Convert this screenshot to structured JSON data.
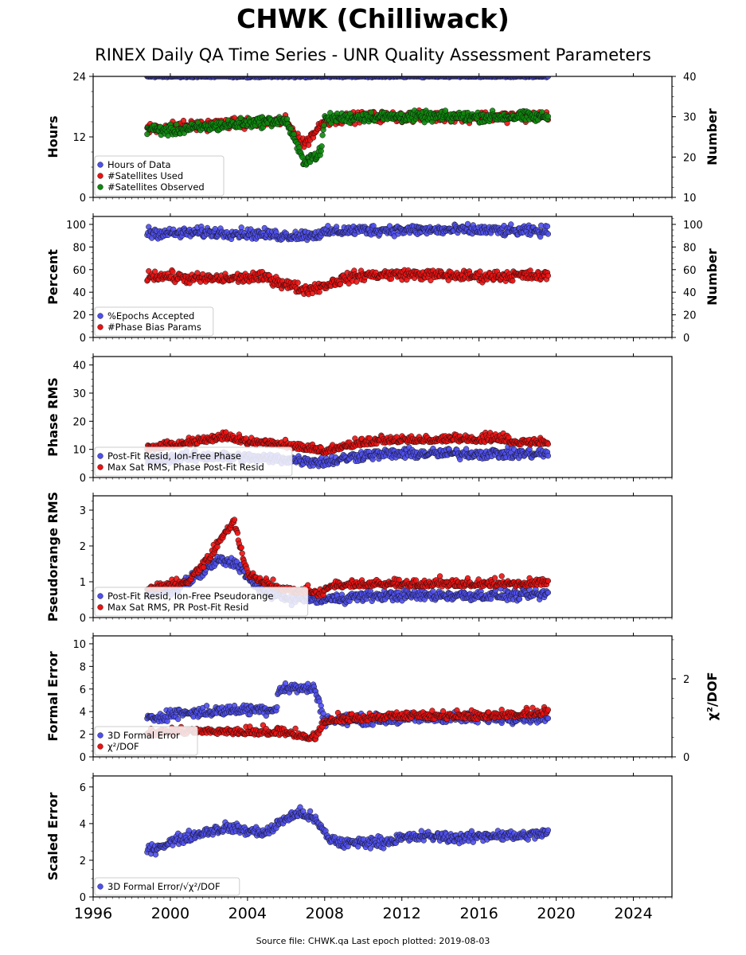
{
  "title": "CHWK (Chilliwack)",
  "subtitle": "RINEX Daily QA Time Series - UNR Quality Assessment Parameters",
  "footer": "Source file: CHWK.qa Last epoch plotted: 2019-08-03",
  "colors": {
    "blue": "#4f4ff0",
    "red": "#ee1111",
    "green": "#0c8a0c",
    "edge": "#111111"
  },
  "chart_data": [
    {
      "type": "scatter",
      "ylabel": "Hours",
      "ylabel_right": "Number",
      "xlim": [
        1996,
        2026
      ],
      "xticks": [
        1996,
        2000,
        2004,
        2008,
        2012,
        2016,
        2020,
        2024
      ],
      "ylim": [
        0,
        24
      ],
      "yticks": [
        0,
        12,
        24
      ],
      "ylim_right": [
        10,
        40
      ],
      "yticks_right": [
        10,
        20,
        30,
        40
      ],
      "legend": [
        "Hours of Data",
        "#Satellites Used",
        "#Satellites Observed"
      ],
      "legend_position": "lower-left",
      "series": [
        {
          "name": "Hours of Data",
          "color": "blue",
          "axis": "left",
          "x": [
            1998.8,
            1999.5,
            2000.3,
            2001.0,
            2002.0,
            2003.0,
            2004.0,
            2005.0,
            2006.0,
            2007.0,
            2008.0,
            2010.0,
            2012.0,
            2014.0,
            2016.0,
            2018.0,
            2019.58
          ],
          "y": [
            24,
            24,
            24,
            24,
            24,
            24,
            24,
            24,
            24,
            24,
            24,
            24,
            24,
            24,
            24,
            24,
            24
          ]
        },
        {
          "name": "#Satellites Used",
          "color": "red",
          "axis": "right",
          "x": [
            1998.8,
            2000.0,
            2002.0,
            2004.0,
            2006.0,
            2006.9,
            2008.0,
            2010.0,
            2012.0,
            2014.0,
            2016.0,
            2018.0,
            2019.58
          ],
          "y": [
            27,
            27.5,
            28,
            28.5,
            28.8,
            23,
            29,
            30,
            30,
            30,
            30,
            30,
            30
          ]
        },
        {
          "name": "#Satellites Observed",
          "color": "green",
          "axis": "right",
          "x": [
            1998.8,
            2000.0,
            2001.0,
            2002.0,
            2003.0,
            2004.0,
            2005.0,
            2006.0,
            2006.9,
            2007.8,
            2008.0,
            2010.0,
            2012.0,
            2014.0,
            2016.0,
            2018.0,
            2019.58
          ],
          "y": [
            27,
            26.5,
            27,
            27.5,
            28,
            28.5,
            28.8,
            29,
            19,
            21,
            29.5,
            30,
            30,
            30,
            30,
            30,
            30
          ]
        }
      ]
    },
    {
      "type": "scatter",
      "ylabel": "Percent",
      "ylabel_right": "Number",
      "xlim": [
        1996,
        2026
      ],
      "xticks": [
        1996,
        2000,
        2004,
        2008,
        2012,
        2016,
        2020,
        2024
      ],
      "ylim": [
        0,
        107
      ],
      "yticks": [
        0,
        20,
        40,
        60,
        80,
        100
      ],
      "ylim_right": [
        0,
        107
      ],
      "yticks_right": [
        0,
        20,
        40,
        60,
        80,
        100
      ],
      "legend": [
        "%Epochs Accepted",
        "#Phase Bias Params"
      ],
      "legend_position": "lower-left",
      "series": [
        {
          "name": "%Epochs Accepted",
          "color": "blue",
          "axis": "left",
          "x": [
            1998.8,
            2000.0,
            2002.0,
            2004.0,
            2006.0,
            2007.5,
            2008.5,
            2010.0,
            2012.0,
            2014.0,
            2016.0,
            2018.0,
            2019.58
          ],
          "y": [
            93,
            92,
            93,
            92,
            90,
            91,
            94,
            95,
            95,
            95,
            95,
            94,
            94
          ]
        },
        {
          "name": "#Phase Bias Params",
          "color": "red",
          "axis": "right",
          "x": [
            1998.8,
            2000.0,
            2001.0,
            2002.0,
            2003.0,
            2004.0,
            2005.0,
            2006.0,
            2007.0,
            2008.0,
            2009.0,
            2010.0,
            2012.0,
            2014.0,
            2016.0,
            2018.0,
            2019.58
          ],
          "y": [
            55,
            54,
            52,
            52,
            52,
            53,
            53,
            47,
            42,
            46,
            52,
            55,
            56,
            55,
            54,
            55,
            54
          ]
        }
      ]
    },
    {
      "type": "scatter",
      "ylabel": "Phase RMS",
      "xlim": [
        1996,
        2026
      ],
      "xticks": [
        1996,
        2000,
        2004,
        2008,
        2012,
        2016,
        2020,
        2024
      ],
      "ylim": [
        0,
        43
      ],
      "yticks": [
        0,
        10,
        20,
        30,
        40
      ],
      "legend": [
        "Post-Fit Resid, Ion-Free Phase",
        "Max Sat RMS, Phase Post-Fit Resid"
      ],
      "legend_position": "lower-left",
      "series": [
        {
          "name": "Post-Fit Resid, Ion-Free Phase",
          "color": "blue",
          "x": [
            1998.8,
            2000.0,
            2002.0,
            2004.0,
            2006.0,
            2008.0,
            2010.0,
            2012.0,
            2014.0,
            2016.0,
            2018.0,
            2019.58
          ],
          "y": [
            6.5,
            7,
            7.5,
            7,
            6.5,
            5.5,
            8,
            8.5,
            8.5,
            8.5,
            8.5,
            8.5
          ]
        },
        {
          "name": "Max Sat RMS, Phase Post-Fit Resid",
          "color": "red",
          "x": [
            1998.8,
            2000.0,
            2001.0,
            2002.0,
            2003.0,
            2004.0,
            2005.0,
            2006.0,
            2007.0,
            2008.0,
            2010.0,
            2012.0,
            2014.0,
            2016.0,
            2017.0,
            2018.0,
            2019.58
          ],
          "y": [
            10,
            11,
            12,
            13,
            14,
            12,
            12,
            11,
            10,
            9,
            12,
            13,
            13,
            13,
            13,
            12,
            12
          ]
        }
      ]
    },
    {
      "type": "scatter",
      "ylabel": "Pseudorange RMS",
      "xlim": [
        1996,
        2026
      ],
      "xticks": [
        1996,
        2000,
        2004,
        2008,
        2012,
        2016,
        2020,
        2024
      ],
      "ylim": [
        0,
        3.4
      ],
      "yticks": [
        0,
        1,
        2,
        3
      ],
      "legend": [
        "Post-Fit Resid, Ion-Free Pseudorange",
        "Max Sat RMS, PR Post-Fit Resid"
      ],
      "legend_position": "lower-left",
      "series": [
        {
          "name": "Post-Fit Resid, Ion-Free Pseudorange",
          "color": "blue",
          "x": [
            1998.8,
            2000.0,
            2001.5,
            2002.5,
            2003.5,
            2004.5,
            2006.0,
            2008.0,
            2010.0,
            2012.0,
            2014.0,
            2016.0,
            2018.0,
            2019.58
          ],
          "y": [
            0.7,
            0.75,
            1.2,
            1.6,
            1.5,
            0.8,
            0.55,
            0.5,
            0.6,
            0.62,
            0.62,
            0.62,
            0.62,
            0.65
          ]
        },
        {
          "name": "Max Sat RMS, PR Post-Fit Resid",
          "color": "red",
          "x": [
            1998.8,
            2000.0,
            2001.0,
            2002.0,
            2002.8,
            2003.3,
            2004.0,
            2005.0,
            2006.0,
            2007.0,
            2007.9,
            2008.2,
            2010.0,
            2012.0,
            2014.0,
            2016.0,
            2018.0,
            2019.58
          ],
          "y": [
            0.8,
            0.85,
            1.0,
            1.6,
            2.3,
            2.6,
            1.2,
            0.9,
            0.75,
            0.7,
            0.6,
            0.85,
            0.9,
            0.9,
            0.9,
            0.9,
            0.9,
            0.95
          ]
        }
      ]
    },
    {
      "type": "scatter",
      "ylabel": "Formal Error",
      "ylabel_right": "χ²/DOF",
      "xlim": [
        1996,
        2026
      ],
      "xticks": [
        1996,
        2000,
        2004,
        2008,
        2012,
        2016,
        2020,
        2024
      ],
      "ylim": [
        0,
        10.7
      ],
      "yticks": [
        0,
        2,
        4,
        6,
        8,
        10
      ],
      "ylim_right": [
        0,
        3.1
      ],
      "yticks_right": [
        0,
        2
      ],
      "legend": [
        "3D Formal Error",
        "χ²/DOF"
      ],
      "legend_position": "lower-left",
      "series": [
        {
          "name": "3D Formal Error",
          "color": "blue",
          "axis": "left",
          "x": [
            1998.8,
            2000.0,
            2002.0,
            2004.0,
            2005.5,
            2005.6,
            2006.5,
            2007.5,
            2008.0,
            2010.0,
            2012.0,
            2014.0,
            2016.0,
            2018.0,
            2019.58
          ],
          "y": [
            3.3,
            3.8,
            4.0,
            4.2,
            4.2,
            6.0,
            6.1,
            6.0,
            3.2,
            3.3,
            3.4,
            3.5,
            3.4,
            3.5,
            3.5
          ]
        },
        {
          "name": "χ²/DOF",
          "color": "red",
          "axis": "right",
          "x": [
            1998.8,
            2000.0,
            2002.0,
            2004.0,
            2006.0,
            2007.5,
            2008.0,
            2010.0,
            2012.0,
            2014.0,
            2016.0,
            2018.0,
            2019.58
          ],
          "y": [
            0.55,
            0.6,
            0.62,
            0.6,
            0.58,
            0.45,
            0.9,
            0.95,
            1.0,
            1.0,
            1.0,
            1.05,
            1.1
          ]
        }
      ]
    },
    {
      "type": "scatter",
      "ylabel": "Scaled Error",
      "xlim": [
        1996,
        2026
      ],
      "xticks": [
        1996,
        2000,
        2004,
        2008,
        2012,
        2016,
        2020,
        2024
      ],
      "ylim": [
        0,
        6.6
      ],
      "yticks": [
        0,
        2,
        4,
        6
      ],
      "legend": [
        "3D Formal Error/√χ²/DOF"
      ],
      "legend_position": "lower-left",
      "series": [
        {
          "name": "3D Formal Error/√χ²/DOF",
          "color": "blue",
          "x": [
            1998.8,
            2000.0,
            2001.0,
            2002.0,
            2003.0,
            2004.0,
            2005.0,
            2006.0,
            2006.8,
            2007.5,
            2008.2,
            2009.0,
            2010.0,
            2011.0,
            2012.0,
            2013.0,
            2014.0,
            2015.0,
            2016.0,
            2017.0,
            2018.0,
            2019.58
          ],
          "y": [
            2.5,
            3.0,
            3.3,
            3.6,
            3.8,
            3.6,
            3.5,
            4.3,
            4.6,
            4.2,
            3.2,
            2.9,
            3.0,
            3.0,
            3.2,
            3.3,
            3.3,
            3.2,
            3.3,
            3.4,
            3.3,
            3.5
          ]
        }
      ]
    }
  ]
}
